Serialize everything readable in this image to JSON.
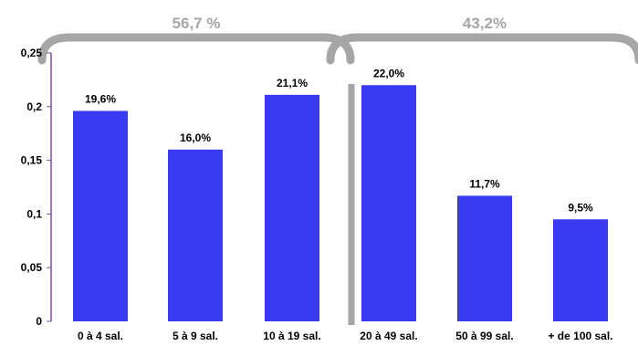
{
  "chart_data": {
    "type": "bar",
    "categories": [
      "0 à 4 sal.",
      "5 à 9 sal.",
      "10 à 19 sal.",
      "20 à 49 sal.",
      "50 à 99 sal.",
      "+ de 100 sal."
    ],
    "values": [
      0.196,
      0.16,
      0.211,
      0.22,
      0.117,
      0.095
    ],
    "data_labels": [
      "19,6%",
      "16,0%",
      "21,1%",
      "22,0%",
      "11,7%",
      "9,5%"
    ],
    "ylim": [
      0,
      0.25
    ],
    "yticks": [
      0,
      0.05,
      0.1,
      0.15,
      0.2,
      0.25
    ],
    "ytick_labels": [
      "0",
      "0,05",
      "0,1",
      "0,15",
      "0,2",
      "0,25"
    ],
    "groups": [
      {
        "label": "56,7 %",
        "from": 0,
        "to": 2
      },
      {
        "label": "43,2%",
        "from": 3,
        "to": 5
      }
    ],
    "bar_color": "#3a3af0",
    "grid": false,
    "legend": "none",
    "title": "",
    "xlabel": "",
    "ylabel": ""
  }
}
